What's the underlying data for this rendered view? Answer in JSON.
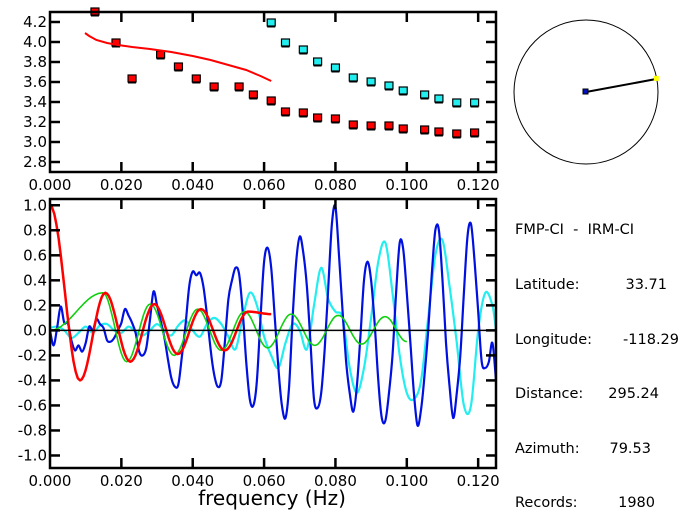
{
  "colors": {
    "red": "#ff0000",
    "cyan": "#22eef0",
    "blue": "#0010e0",
    "green": "#10d010",
    "axis": "#000000",
    "square_border": "#000000"
  },
  "info_panel": {
    "title": "FMP-CI  -  IRM-CI",
    "rows": [
      {
        "label": "Latitude:",
        "value": "33.71"
      },
      {
        "label": "Longitude:",
        "value": "-118.29"
      },
      {
        "label": "Distance:",
        "value": "295.24"
      },
      {
        "label": "Azimuth:",
        "value": "79.53"
      },
      {
        "label": "Records:",
        "value": "1980"
      }
    ]
  },
  "azimuth_map": {
    "azimuth_deg": 79.53,
    "center_marker_color": "#0010c0",
    "station_marker_color": "#ffff00"
  },
  "chart_data": [
    {
      "type": "scatter",
      "title": "",
      "xlabel": "",
      "ylabel": "",
      "xlim": [
        0,
        0.125
      ],
      "ylim": [
        2.7,
        4.3
      ],
      "x_ticks": [
        "0.000",
        "0.020",
        "0.040",
        "0.060",
        "0.080",
        "0.100",
        "0.120"
      ],
      "x_tick_values": [
        0,
        0.02,
        0.04,
        0.06,
        0.08,
        0.1,
        0.12
      ],
      "y_ticks": [
        "2.8",
        "3.0",
        "3.2",
        "3.4",
        "3.6",
        "3.8",
        "4.0",
        "4.2"
      ],
      "y_tick_values": [
        2.8,
        3.0,
        3.2,
        3.4,
        3.6,
        3.8,
        4.0,
        4.2
      ],
      "grid": false,
      "series": [
        {
          "name": "red-points",
          "kind": "points",
          "color": "#ff0000",
          "x": [
            0.0126,
            0.0185,
            0.023,
            0.031,
            0.036,
            0.041,
            0.046,
            0.053,
            0.057,
            0.062,
            0.066,
            0.071,
            0.075,
            0.08,
            0.085,
            0.09,
            0.095,
            0.099,
            0.105,
            0.109,
            0.114,
            0.119
          ],
          "y": [
            4.3,
            3.99,
            3.63,
            3.87,
            3.75,
            3.63,
            3.55,
            3.55,
            3.47,
            3.41,
            3.3,
            3.29,
            3.24,
            3.23,
            3.17,
            3.16,
            3.16,
            3.13,
            3.12,
            3.1,
            3.08,
            3.09
          ]
        },
        {
          "name": "cyan-points",
          "kind": "points",
          "color": "#22eef0",
          "x": [
            0.062,
            0.066,
            0.071,
            0.075,
            0.08,
            0.085,
            0.09,
            0.095,
            0.099,
            0.105,
            0.109,
            0.114,
            0.119
          ],
          "y": [
            4.19,
            3.99,
            3.92,
            3.8,
            3.74,
            3.64,
            3.6,
            3.56,
            3.51,
            3.47,
            3.43,
            3.39,
            3.39
          ]
        },
        {
          "name": "red-curve",
          "kind": "line",
          "color": "#ff0000",
          "x": [
            0.0098,
            0.011,
            0.013,
            0.016,
            0.019,
            0.023,
            0.028,
            0.034,
            0.04,
            0.045,
            0.05,
            0.055,
            0.059,
            0.062
          ],
          "y": [
            4.09,
            4.06,
            4.02,
            3.99,
            3.97,
            3.95,
            3.93,
            3.9,
            3.86,
            3.82,
            3.77,
            3.72,
            3.66,
            3.61
          ]
        }
      ]
    },
    {
      "type": "line",
      "title": "",
      "xlabel": "frequency (Hz)",
      "ylabel": "",
      "xlim": [
        0,
        0.125
      ],
      "ylim": [
        -1.1,
        1.05
      ],
      "x_ticks": [
        "0.000",
        "0.020",
        "0.040",
        "0.060",
        "0.080",
        "0.100",
        "0.120"
      ],
      "x_tick_values": [
        0,
        0.02,
        0.04,
        0.06,
        0.08,
        0.1,
        0.12
      ],
      "y_ticks": [
        "-1.0",
        "-0.8",
        "-0.6",
        "-0.4",
        "-0.2",
        "0.0",
        "0.2",
        "0.4",
        "0.6",
        "0.8",
        "1.0"
      ],
      "y_tick_values": [
        -1.0,
        -0.8,
        -0.6,
        -0.4,
        -0.2,
        0.0,
        0.2,
        0.4,
        0.6,
        0.8,
        1.0
      ],
      "grid": false,
      "zero_line": true,
      "series": [
        {
          "name": "observed-blue",
          "color": "#0010e0",
          "x": [
            0.0,
            0.001,
            0.002,
            0.003,
            0.004,
            0.005,
            0.006,
            0.007,
            0.008,
            0.009,
            0.01,
            0.011,
            0.012,
            0.013,
            0.014,
            0.015,
            0.016,
            0.017,
            0.018,
            0.019,
            0.02,
            0.021,
            0.022,
            0.023,
            0.024,
            0.025,
            0.026,
            0.027,
            0.028,
            0.029,
            0.03,
            0.031,
            0.032,
            0.033,
            0.034,
            0.035,
            0.036,
            0.037,
            0.038,
            0.039,
            0.04,
            0.041,
            0.042,
            0.043,
            0.044,
            0.045,
            0.046,
            0.047,
            0.048,
            0.049,
            0.05,
            0.051,
            0.052,
            0.053,
            0.054,
            0.055,
            0.056,
            0.057,
            0.058,
            0.059,
            0.06,
            0.061,
            0.062,
            0.063,
            0.064,
            0.065,
            0.066,
            0.067,
            0.068,
            0.069,
            0.07,
            0.071,
            0.072,
            0.073,
            0.074,
            0.075,
            0.076,
            0.077,
            0.078,
            0.079,
            0.08,
            0.081,
            0.082,
            0.083,
            0.084,
            0.085,
            0.086,
            0.087,
            0.088,
            0.089,
            0.09,
            0.091,
            0.092,
            0.093,
            0.094,
            0.095,
            0.096,
            0.097,
            0.098,
            0.099,
            0.1,
            0.101,
            0.102,
            0.103,
            0.104,
            0.105,
            0.106,
            0.107,
            0.108,
            0.109,
            0.11,
            0.111,
            0.112,
            0.113,
            0.114,
            0.115,
            0.116,
            0.117,
            0.118,
            0.119,
            0.12,
            0.121,
            0.122,
            0.123,
            0.124,
            0.125
          ],
          "y": [
            0.0,
            -0.12,
            0.02,
            0.19,
            0.06,
            0.06,
            -0.08,
            -0.16,
            -0.12,
            -0.17,
            -0.1,
            0.03,
            0.0,
            0.09,
            0.05,
            0.02,
            -0.08,
            -0.09,
            -0.06,
            0.0,
            0.06,
            0.17,
            0.12,
            0.06,
            -0.02,
            -0.17,
            -0.2,
            -0.14,
            0.08,
            0.31,
            0.2,
            0.08,
            -0.05,
            -0.22,
            -0.38,
            -0.45,
            -0.43,
            -0.2,
            0.05,
            0.35,
            0.47,
            0.44,
            0.46,
            0.35,
            0.12,
            -0.15,
            -0.35,
            -0.45,
            -0.4,
            -0.1,
            0.25,
            0.4,
            0.5,
            0.45,
            0.15,
            -0.25,
            -0.55,
            -0.6,
            -0.4,
            0.1,
            0.55,
            0.66,
            0.5,
            0.1,
            -0.3,
            -0.6,
            -0.7,
            -0.45,
            0.1,
            0.55,
            0.75,
            0.62,
            0.35,
            -0.1,
            -0.55,
            -0.62,
            -0.5,
            -0.15,
            0.35,
            0.85,
            0.99,
            0.6,
            0.15,
            -0.25,
            -0.5,
            -0.65,
            -0.45,
            -0.05,
            0.4,
            0.55,
            0.4,
            0.05,
            -0.4,
            -0.7,
            -0.72,
            -0.5,
            -0.2,
            0.3,
            0.7,
            0.65,
            0.3,
            -0.1,
            -0.5,
            -0.76,
            -0.63,
            -0.35,
            0.0,
            0.45,
            0.8,
            0.8,
            0.4,
            -0.1,
            -0.45,
            -0.7,
            -0.5,
            -0.2,
            0.3,
            0.75,
            0.85,
            0.55,
            0.15,
            -0.25,
            -0.3,
            -0.25,
            -0.1,
            -0.4
          ]
        },
        {
          "name": "observed-cyan",
          "color": "#22eef0",
          "x": [
            0.0,
            0.002,
            0.004,
            0.006,
            0.008,
            0.01,
            0.012,
            0.014,
            0.016,
            0.018,
            0.02,
            0.022,
            0.024,
            0.026,
            0.028,
            0.03,
            0.032,
            0.034,
            0.036,
            0.038,
            0.04,
            0.042,
            0.044,
            0.046,
            0.048,
            0.05,
            0.052,
            0.054,
            0.056,
            0.058,
            0.06,
            0.062,
            0.064,
            0.066,
            0.068,
            0.07,
            0.072,
            0.074,
            0.076,
            0.078,
            0.08,
            0.082,
            0.084,
            0.086,
            0.088,
            0.09,
            0.092,
            0.094,
            0.096,
            0.098,
            0.1,
            0.102,
            0.104,
            0.106,
            0.108,
            0.11,
            0.112,
            0.114,
            0.116,
            0.118,
            0.12,
            0.122,
            0.124,
            0.125
          ],
          "y": [
            0.02,
            0.03,
            0.0,
            -0.06,
            -0.02,
            0.03,
            -0.02,
            0.04,
            0.05,
            0.0,
            -0.02,
            0.03,
            -0.01,
            -0.04,
            0.0,
            0.05,
            0.0,
            -0.04,
            0.04,
            0.08,
            0.0,
            -0.05,
            0.05,
            0.1,
            0.05,
            -0.05,
            -0.15,
            0.1,
            0.3,
            0.2,
            -0.05,
            -0.2,
            -0.3,
            -0.1,
            0.05,
            0.0,
            -0.15,
            0.2,
            0.5,
            0.25,
            0.15,
            0.1,
            -0.3,
            -0.5,
            -0.3,
            0.1,
            0.55,
            0.7,
            0.3,
            -0.2,
            -0.5,
            -0.55,
            -0.4,
            0.1,
            0.6,
            0.72,
            0.35,
            -0.1,
            -0.6,
            -0.6,
            0.0,
            0.3,
            0.2,
            0.0
          ]
        },
        {
          "name": "model-green",
          "color": "#10d010",
          "x_range": [
            0.0,
            0.1
          ],
          "peaks": [
            [
              0.0148,
              0.3
            ],
            [
              0.0215,
              -0.25
            ],
            [
              0.0281,
              0.21
            ],
            [
              0.0348,
              -0.2
            ],
            [
              0.0414,
              0.17
            ],
            [
              0.048,
              -0.16
            ],
            [
              0.0545,
              0.15
            ],
            [
              0.061,
              -0.14
            ],
            [
              0.0676,
              0.13
            ],
            [
              0.0742,
              -0.12
            ],
            [
              0.0808,
              0.12
            ],
            [
              0.0873,
              -0.11
            ],
            [
              0.0939,
              0.11
            ],
            [
              0.1,
              -0.09
            ]
          ]
        },
        {
          "name": "model-red",
          "color": "#ff0000",
          "x_range": [
            0.0,
            0.062
          ],
          "peaks": [
            [
              0.0,
              1.0
            ],
            [
              0.0084,
              -0.4
            ],
            [
              0.0155,
              0.3
            ],
            [
              0.0225,
              -0.25
            ],
            [
              0.0292,
              0.21
            ],
            [
              0.0358,
              -0.19
            ],
            [
              0.0423,
              0.17
            ],
            [
              0.049,
              -0.16
            ],
            [
              0.0555,
              0.15
            ],
            [
              0.062,
              0.13
            ]
          ]
        }
      ]
    }
  ]
}
